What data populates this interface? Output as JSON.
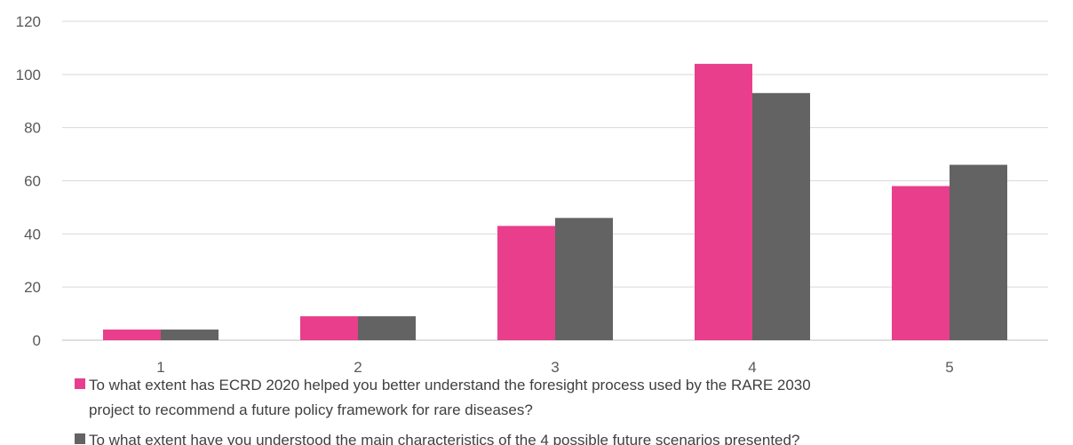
{
  "chart_data": {
    "type": "bar",
    "categories": [
      "1",
      "2",
      "3",
      "4",
      "5"
    ],
    "series": [
      {
        "name": "To what extent has ECRD 2020 helped you better understand the foresight process used by the RARE 2030 project to recommend a future policy framework for rare diseases?",
        "name_lines": [
          "To what extent has ECRD 2020 helped you better understand the foresight process used by the RARE 2030",
          "project to recommend a future policy framework for rare diseases?"
        ],
        "color": "#e83e8c",
        "values": [
          4,
          9,
          43,
          104,
          58
        ]
      },
      {
        "name": "To what extent have you understood the main characteristics of the 4 possible future scenarios presented?",
        "name_lines": [
          "To what extent have you understood the main characteristics of the 4 possible future scenarios presented?"
        ],
        "color": "#636363",
        "values": [
          4,
          9,
          46,
          93,
          66
        ]
      }
    ],
    "yticks": [
      "0",
      "20",
      "40",
      "60",
      "80",
      "100",
      "120"
    ],
    "ylim": [
      0,
      120
    ],
    "grid": true,
    "legend": "bottom"
  }
}
